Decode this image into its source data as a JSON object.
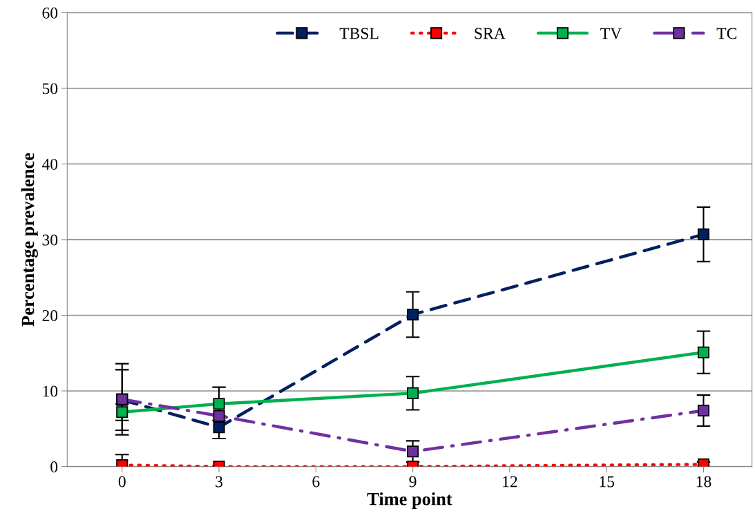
{
  "chart_data": {
    "type": "line",
    "xlabel": "Time point",
    "ylabel": "Percentage prevalence",
    "x": [
      0,
      3,
      9,
      18
    ],
    "xlim": [
      -1.7,
      19.5
    ],
    "xticks": [
      0,
      3,
      6,
      9,
      12,
      15,
      18
    ],
    "ylim": [
      0,
      60
    ],
    "yticks": [
      0,
      10,
      20,
      30,
      40,
      50,
      60
    ],
    "grid": "y",
    "legend": "top right",
    "marker": "square",
    "series": [
      {
        "name": "TBSL",
        "color": "#002060",
        "line_style": "dashed",
        "values": [
          8.8,
          5.2,
          20.1,
          30.7
        ],
        "errors": [
          4.0,
          1.5,
          3.0,
          3.6
        ]
      },
      {
        "name": "SRA",
        "color": "#ff0000",
        "line_style": "dotted",
        "values": [
          0.2,
          0,
          0,
          0.3
        ],
        "errors": [
          1.4,
          null,
          null,
          0.3
        ]
      },
      {
        "name": "TV",
        "color": "#00b050",
        "line_style": "solid",
        "values": [
          7.2,
          8.3,
          9.7,
          15.1
        ],
        "errors": [
          1.1,
          2.2,
          2.2,
          2.8
        ]
      },
      {
        "name": "TC",
        "color": "#7030a0",
        "line_style": "dashdot",
        "values": [
          8.9,
          6.7,
          2.0,
          7.4
        ],
        "errors": [
          4.7,
          null,
          1.4,
          2.05
        ]
      }
    ]
  }
}
